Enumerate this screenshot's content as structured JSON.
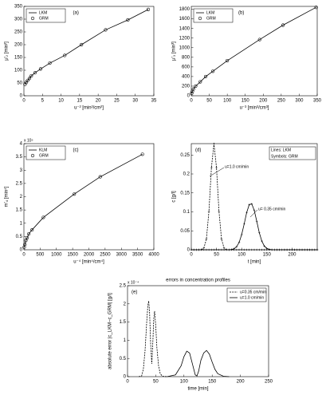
{
  "chart_data": [
    {
      "type": "line",
      "panel_label": "(a)",
      "xlabel": "u⁻² [min²/cm²]",
      "ylabel": "μ'₂ [min²]",
      "xlim": [
        0,
        35
      ],
      "ylim": [
        0,
        350
      ],
      "xticks": [
        0,
        5,
        10,
        15,
        20,
        25,
        30,
        35
      ],
      "yticks": [
        0,
        50,
        100,
        150,
        200,
        250,
        300,
        350
      ],
      "legend": "upper left",
      "x": [
        0.3,
        0.6,
        1,
        1.5,
        2,
        3,
        4.5,
        7,
        11,
        15.5,
        22,
        28,
        33.5
      ],
      "series": [
        {
          "name": "LKM",
          "color": "#000000",
          "line": true,
          "values": [
            45,
            52,
            60,
            68,
            78,
            90,
            105,
            128,
            158,
            200,
            258,
            297,
            338
          ]
        },
        {
          "name": "GRM",
          "color": "#000000",
          "marker": "circle",
          "values": [
            45,
            52,
            60,
            68,
            78,
            90,
            105,
            128,
            158,
            200,
            258,
            297,
            338
          ]
        }
      ]
    },
    {
      "type": "line",
      "panel_label": "(b)",
      "xlabel": "u⁻³ [min³/cm³]",
      "ylabel": "μ'₃ [min³]",
      "xlim": [
        0,
        350
      ],
      "ylim": [
        0,
        1860
      ],
      "xticks": [
        0,
        50,
        100,
        150,
        200,
        250,
        300,
        350
      ],
      "yticks": [
        0,
        200,
        400,
        600,
        800,
        1000,
        1200,
        1400,
        1600,
        1800
      ],
      "legend": "upper left",
      "x": [
        1,
        3,
        6,
        12,
        25,
        40,
        60,
        100,
        190,
        255,
        347
      ],
      "series": [
        {
          "name": "LKM",
          "color": "#000000",
          "line": true,
          "values": [
            50,
            90,
            140,
            200,
            290,
            400,
            510,
            730,
            1170,
            1470,
            1840
          ]
        },
        {
          "name": "GRM",
          "color": "#000000",
          "marker": "circle",
          "values": [
            50,
            90,
            140,
            200,
            290,
            400,
            510,
            730,
            1170,
            1470,
            1840
          ]
        }
      ]
    },
    {
      "type": "line",
      "panel_label": "(c)",
      "xlabel": "u⁻⁴ [min⁴/cm⁴]",
      "ylabel": "m'₄ [min⁴]",
      "y_exponent": "x 10⁵",
      "xlim": [
        0,
        4000
      ],
      "ylim": [
        0,
        4
      ],
      "xticks": [
        0,
        500,
        1000,
        1500,
        2000,
        2500,
        3000,
        3500,
        4000
      ],
      "yticks": [
        0,
        0.5,
        1,
        1.5,
        2,
        2.5,
        3,
        3.5,
        4
      ],
      "legend": "upper left",
      "x": [
        10,
        30,
        60,
        100,
        150,
        250,
        600,
        1550,
        2350,
        3650
      ],
      "series": [
        {
          "name": "KLM",
          "color": "#000000",
          "line": true,
          "values": [
            0.1,
            0.2,
            0.35,
            0.45,
            0.6,
            0.75,
            1.22,
            2.1,
            2.75,
            3.6
          ]
        },
        {
          "name": "GRM",
          "color": "#000000",
          "marker": "circle",
          "values": [
            0.1,
            0.2,
            0.35,
            0.45,
            0.6,
            0.75,
            1.22,
            2.1,
            2.75,
            3.6
          ]
        }
      ]
    },
    {
      "type": "line",
      "panel_label": "(d)",
      "xlabel": "t [min]",
      "ylabel": "c [g/l]",
      "xlim": [
        0,
        250
      ],
      "ylim": [
        0,
        0.28
      ],
      "xticks": [
        0,
        50,
        100,
        150,
        200
      ],
      "yticks": [
        0,
        0.05,
        0.1,
        0.15,
        0.2,
        0.25
      ],
      "annotations": [
        "Lines: LKM",
        "Symbols: GRM",
        "u=1.0 cm/min",
        "u= 0.35 cm/min"
      ],
      "x": [
        0,
        5,
        10,
        15,
        20,
        25,
        30,
        35,
        40,
        45,
        50,
        55,
        60,
        65,
        70,
        75,
        80,
        85,
        90,
        95,
        100,
        105,
        110,
        115,
        120,
        125,
        130,
        135,
        140,
        145,
        150,
        155,
        160,
        165,
        170,
        175,
        180,
        185,
        190,
        195,
        200,
        205,
        210,
        215,
        220,
        225,
        230,
        235,
        240,
        245,
        250
      ],
      "series": [
        {
          "color": "#000000",
          "line": true,
          "dash": true,
          "marker": "plus",
          "values": [
            0,
            0,
            0,
            0,
            0.0005,
            0.0047,
            0.028,
            0.101,
            0.217,
            0.28,
            0.217,
            0.101,
            0.028,
            0.0047,
            0.0005,
            0,
            0,
            0,
            0,
            0,
            0,
            0,
            0,
            0,
            0,
            0,
            0,
            0,
            0,
            0,
            0,
            0,
            0,
            0,
            0,
            0,
            0,
            0,
            0,
            0,
            0,
            0,
            0,
            0,
            0,
            0,
            0,
            0,
            0,
            0,
            0
          ]
        },
        {
          "color": "#000000",
          "line": true,
          "marker": "plus",
          "values": [
            0,
            0,
            0,
            0,
            0,
            0,
            0,
            0,
            0,
            0,
            0,
            0,
            0,
            0,
            0,
            0,
            0.0008,
            0.0028,
            0.0081,
            0.0196,
            0.04,
            0.068,
            0.0985,
            0.119,
            0.121,
            0.104,
            0.075,
            0.045,
            0.023,
            0.0098,
            0.0035,
            0.0011,
            0.0003,
            0,
            0,
            0,
            0,
            0,
            0,
            0,
            0,
            0,
            0,
            0,
            0,
            0,
            0,
            0,
            0,
            0,
            0
          ]
        }
      ]
    },
    {
      "type": "line",
      "title": "errors in concentration profiles",
      "panel_label": "(e)",
      "xlabel": "time [min]",
      "ylabel": "absolute error |c_LKM−c_GRM| [g/l]",
      "y_exponent": "x 10⁻⁴",
      "xlim": [
        0,
        250
      ],
      "ylim": [
        0,
        2.5
      ],
      "xticks": [
        0,
        50,
        100,
        150,
        200,
        250
      ],
      "yticks": [
        0,
        0.5,
        1,
        1.5,
        2,
        2.5
      ],
      "legend": "upper right",
      "series": [
        {
          "name": "u=0.35 cm/min",
          "color": "#000000",
          "line": true,
          "dash": true,
          "x": [
            20,
            25,
            28,
            31,
            34,
            36,
            37.5,
            39,
            41,
            43,
            45,
            46.5,
            48,
            50,
            52,
            55,
            58,
            62,
            70
          ],
          "values": [
            0,
            0.02,
            0.2,
            0.7,
            1.5,
            1.95,
            2.08,
            1.8,
            0.9,
            0.35,
            1.0,
            1.6,
            1.8,
            1.4,
            0.8,
            0.3,
            0.08,
            0.01,
            0
          ]
        },
        {
          "name": "u=1.0 cm/min",
          "color": "#000000",
          "line": true,
          "x": [
            70,
            85,
            95,
            100,
            105,
            110,
            115,
            120,
            123,
            126,
            130,
            135,
            140,
            145,
            150,
            155,
            160,
            170,
            180
          ],
          "values": [
            0,
            0.05,
            0.3,
            0.55,
            0.7,
            0.65,
            0.35,
            0.05,
            0.02,
            0.15,
            0.45,
            0.65,
            0.72,
            0.62,
            0.4,
            0.2,
            0.08,
            0.01,
            0
          ]
        }
      ]
    }
  ]
}
